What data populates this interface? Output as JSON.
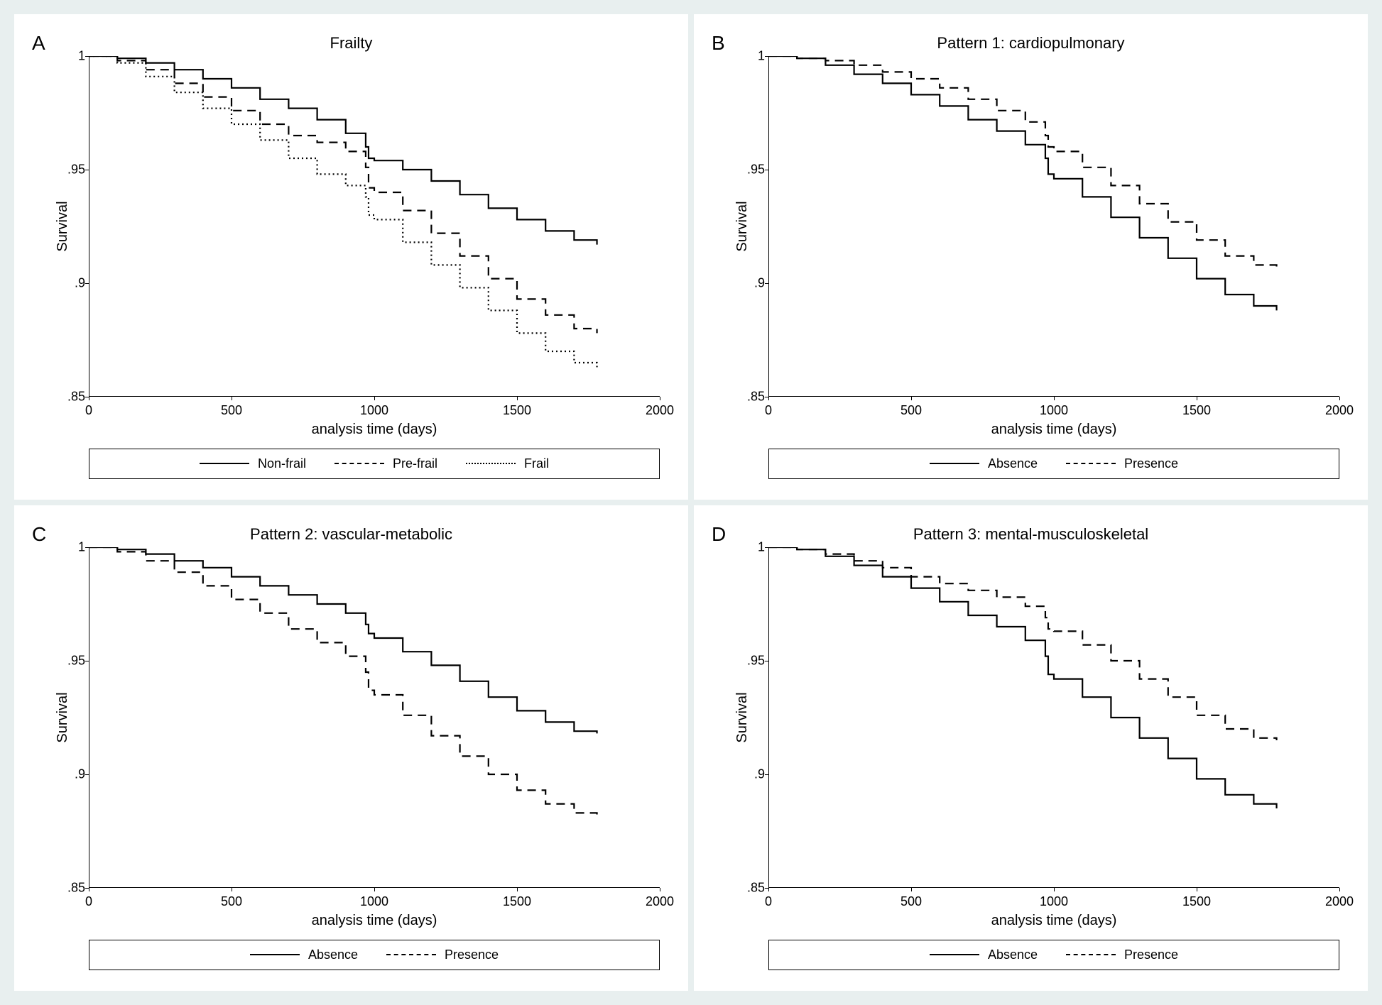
{
  "background_color": "#e8efef",
  "panel_background": "#ffffff",
  "line_color": "#000000",
  "font_family": "Arial, sans-serif",
  "title_fontsize": 22,
  "label_fontsize": 20,
  "tick_fontsize": 18,
  "legend_fontsize": 18,
  "panel_letter_fontsize": 28,
  "xlim": [
    0,
    2000
  ],
  "ylim": [
    0.85,
    1.0
  ],
  "xticks": [
    0,
    500,
    1000,
    1500,
    2000
  ],
  "yticks": [
    0.85,
    0.9,
    0.95,
    1.0
  ],
  "ytick_labels": [
    ".85",
    ".9",
    ".95",
    "1"
  ],
  "xlabel": "analysis time (days)",
  "ylabel": "Survival",
  "panels": {
    "A": {
      "letter": "A",
      "title": "Frailty",
      "legend": [
        {
          "label": "Non-frail",
          "style": "solid"
        },
        {
          "label": "Pre-frail",
          "style": "dashed"
        },
        {
          "label": "Frail",
          "style": "dotted"
        }
      ],
      "series": [
        {
          "style": "solid",
          "points": [
            [
              0,
              1.0
            ],
            [
              100,
              0.999
            ],
            [
              200,
              0.997
            ],
            [
              300,
              0.994
            ],
            [
              400,
              0.99
            ],
            [
              500,
              0.986
            ],
            [
              600,
              0.981
            ],
            [
              700,
              0.977
            ],
            [
              800,
              0.972
            ],
            [
              900,
              0.966
            ],
            [
              970,
              0.96
            ],
            [
              980,
              0.955
            ],
            [
              1000,
              0.954
            ],
            [
              1100,
              0.95
            ],
            [
              1200,
              0.945
            ],
            [
              1300,
              0.939
            ],
            [
              1400,
              0.933
            ],
            [
              1500,
              0.928
            ],
            [
              1600,
              0.923
            ],
            [
              1700,
              0.919
            ],
            [
              1780,
              0.917
            ]
          ]
        },
        {
          "style": "dashed",
          "points": [
            [
              0,
              1.0
            ],
            [
              100,
              0.998
            ],
            [
              200,
              0.994
            ],
            [
              300,
              0.988
            ],
            [
              400,
              0.982
            ],
            [
              500,
              0.976
            ],
            [
              600,
              0.97
            ],
            [
              700,
              0.965
            ],
            [
              800,
              0.962
            ],
            [
              900,
              0.958
            ],
            [
              970,
              0.951
            ],
            [
              980,
              0.942
            ],
            [
              1000,
              0.94
            ],
            [
              1100,
              0.932
            ],
            [
              1200,
              0.922
            ],
            [
              1300,
              0.912
            ],
            [
              1400,
              0.902
            ],
            [
              1500,
              0.893
            ],
            [
              1600,
              0.886
            ],
            [
              1700,
              0.88
            ],
            [
              1780,
              0.878
            ]
          ]
        },
        {
          "style": "dotted",
          "points": [
            [
              0,
              1.0
            ],
            [
              100,
              0.997
            ],
            [
              200,
              0.991
            ],
            [
              300,
              0.984
            ],
            [
              400,
              0.977
            ],
            [
              500,
              0.97
            ],
            [
              600,
              0.963
            ],
            [
              700,
              0.955
            ],
            [
              800,
              0.948
            ],
            [
              900,
              0.943
            ],
            [
              970,
              0.938
            ],
            [
              980,
              0.93
            ],
            [
              1000,
              0.928
            ],
            [
              1100,
              0.918
            ],
            [
              1200,
              0.908
            ],
            [
              1300,
              0.898
            ],
            [
              1400,
              0.888
            ],
            [
              1500,
              0.878
            ],
            [
              1600,
              0.87
            ],
            [
              1700,
              0.865
            ],
            [
              1780,
              0.863
            ]
          ]
        }
      ]
    },
    "B": {
      "letter": "B",
      "title": "Pattern 1: cardiopulmonary",
      "legend": [
        {
          "label": "Absence",
          "style": "solid"
        },
        {
          "label": "Presence",
          "style": "dashed"
        }
      ],
      "series": [
        {
          "style": "solid",
          "points": [
            [
              0,
              1.0
            ],
            [
              100,
              0.999
            ],
            [
              200,
              0.996
            ],
            [
              300,
              0.992
            ],
            [
              400,
              0.988
            ],
            [
              500,
              0.983
            ],
            [
              600,
              0.978
            ],
            [
              700,
              0.972
            ],
            [
              800,
              0.967
            ],
            [
              900,
              0.961
            ],
            [
              970,
              0.955
            ],
            [
              980,
              0.948
            ],
            [
              1000,
              0.946
            ],
            [
              1100,
              0.938
            ],
            [
              1200,
              0.929
            ],
            [
              1300,
              0.92
            ],
            [
              1400,
              0.911
            ],
            [
              1500,
              0.902
            ],
            [
              1600,
              0.895
            ],
            [
              1700,
              0.89
            ],
            [
              1780,
              0.888
            ]
          ]
        },
        {
          "style": "dashed",
          "points": [
            [
              0,
              1.0
            ],
            [
              100,
              0.999
            ],
            [
              200,
              0.998
            ],
            [
              300,
              0.996
            ],
            [
              400,
              0.993
            ],
            [
              500,
              0.99
            ],
            [
              600,
              0.986
            ],
            [
              700,
              0.981
            ],
            [
              800,
              0.976
            ],
            [
              900,
              0.971
            ],
            [
              970,
              0.965
            ],
            [
              980,
              0.96
            ],
            [
              1000,
              0.958
            ],
            [
              1100,
              0.951
            ],
            [
              1200,
              0.943
            ],
            [
              1300,
              0.935
            ],
            [
              1400,
              0.927
            ],
            [
              1500,
              0.919
            ],
            [
              1600,
              0.912
            ],
            [
              1700,
              0.908
            ],
            [
              1780,
              0.907
            ]
          ]
        }
      ]
    },
    "C": {
      "letter": "C",
      "title": "Pattern 2: vascular-metabolic",
      "legend": [
        {
          "label": "Absence",
          "style": "solid"
        },
        {
          "label": "Presence",
          "style": "dashed"
        }
      ],
      "series": [
        {
          "style": "solid",
          "points": [
            [
              0,
              1.0
            ],
            [
              100,
              0.999
            ],
            [
              200,
              0.997
            ],
            [
              300,
              0.994
            ],
            [
              400,
              0.991
            ],
            [
              500,
              0.987
            ],
            [
              600,
              0.983
            ],
            [
              700,
              0.979
            ],
            [
              800,
              0.975
            ],
            [
              900,
              0.971
            ],
            [
              970,
              0.966
            ],
            [
              980,
              0.962
            ],
            [
              1000,
              0.96
            ],
            [
              1100,
              0.954
            ],
            [
              1200,
              0.948
            ],
            [
              1300,
              0.941
            ],
            [
              1400,
              0.934
            ],
            [
              1500,
              0.928
            ],
            [
              1600,
              0.923
            ],
            [
              1700,
              0.919
            ],
            [
              1780,
              0.918
            ]
          ]
        },
        {
          "style": "dashed",
          "points": [
            [
              0,
              1.0
            ],
            [
              100,
              0.998
            ],
            [
              200,
              0.994
            ],
            [
              300,
              0.989
            ],
            [
              400,
              0.983
            ],
            [
              500,
              0.977
            ],
            [
              600,
              0.971
            ],
            [
              700,
              0.964
            ],
            [
              800,
              0.958
            ],
            [
              900,
              0.952
            ],
            [
              970,
              0.945
            ],
            [
              980,
              0.937
            ],
            [
              1000,
              0.935
            ],
            [
              1100,
              0.926
            ],
            [
              1200,
              0.917
            ],
            [
              1300,
              0.908
            ],
            [
              1400,
              0.9
            ],
            [
              1500,
              0.893
            ],
            [
              1600,
              0.887
            ],
            [
              1700,
              0.883
            ],
            [
              1780,
              0.882
            ]
          ]
        }
      ]
    },
    "D": {
      "letter": "D",
      "title": "Pattern 3: mental-musculoskeletal",
      "legend": [
        {
          "label": "Absence",
          "style": "solid"
        },
        {
          "label": "Presence",
          "style": "dashed"
        }
      ],
      "series": [
        {
          "style": "solid",
          "points": [
            [
              0,
              1.0
            ],
            [
              100,
              0.999
            ],
            [
              200,
              0.996
            ],
            [
              300,
              0.992
            ],
            [
              400,
              0.987
            ],
            [
              500,
              0.982
            ],
            [
              600,
              0.976
            ],
            [
              700,
              0.97
            ],
            [
              800,
              0.965
            ],
            [
              900,
              0.959
            ],
            [
              970,
              0.952
            ],
            [
              980,
              0.944
            ],
            [
              1000,
              0.942
            ],
            [
              1100,
              0.934
            ],
            [
              1200,
              0.925
            ],
            [
              1300,
              0.916
            ],
            [
              1400,
              0.907
            ],
            [
              1500,
              0.898
            ],
            [
              1600,
              0.891
            ],
            [
              1700,
              0.887
            ],
            [
              1780,
              0.885
            ]
          ]
        },
        {
          "style": "dashed",
          "points": [
            [
              0,
              1.0
            ],
            [
              100,
              0.999
            ],
            [
              200,
              0.997
            ],
            [
              300,
              0.994
            ],
            [
              400,
              0.991
            ],
            [
              500,
              0.987
            ],
            [
              600,
              0.984
            ],
            [
              700,
              0.981
            ],
            [
              800,
              0.978
            ],
            [
              900,
              0.974
            ],
            [
              970,
              0.969
            ],
            [
              980,
              0.964
            ],
            [
              1000,
              0.963
            ],
            [
              1100,
              0.957
            ],
            [
              1200,
              0.95
            ],
            [
              1300,
              0.942
            ],
            [
              1400,
              0.934
            ],
            [
              1500,
              0.926
            ],
            [
              1600,
              0.92
            ],
            [
              1700,
              0.916
            ],
            [
              1780,
              0.915
            ]
          ]
        }
      ]
    }
  }
}
